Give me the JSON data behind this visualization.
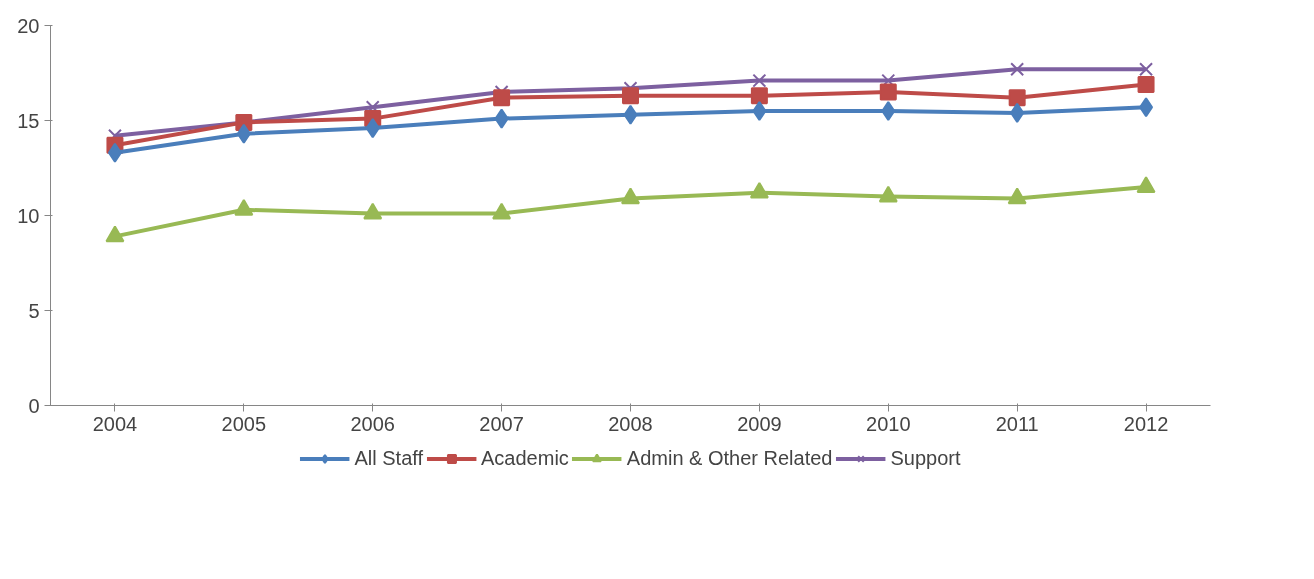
{
  "chart_data": {
    "type": "line",
    "categories": [
      "2004",
      "2005",
      "2006",
      "2007",
      "2008",
      "2009",
      "2010",
      "2011",
      "2012"
    ],
    "series": [
      {
        "name": "All Staff",
        "color": "#4a7ebb",
        "marker": "diamond",
        "values": [
          13.3,
          14.3,
          14.6,
          15.1,
          15.3,
          15.5,
          15.5,
          15.4,
          15.7
        ]
      },
      {
        "name": "Academic",
        "color": "#be4b48",
        "marker": "square",
        "values": [
          13.7,
          14.9,
          15.1,
          16.2,
          16.3,
          16.3,
          16.5,
          16.2,
          16.9
        ]
      },
      {
        "name": "Admin & Other Related",
        "color": "#98b954",
        "marker": "triangle",
        "values": [
          8.9,
          10.3,
          10.1,
          10.1,
          10.9,
          11.2,
          11.0,
          10.9,
          11.5
        ]
      },
      {
        "name": "Support",
        "color": "#7d60a0",
        "marker": "cross",
        "values": [
          14.2,
          14.9,
          15.7,
          16.5,
          16.7,
          17.1,
          17.1,
          17.7,
          17.7
        ]
      }
    ],
    "ylim": [
      0,
      20
    ],
    "yticks": [
      0,
      5,
      10,
      15,
      20
    ],
    "grid": false,
    "legend": "bottom",
    "line_style": "solid"
  }
}
